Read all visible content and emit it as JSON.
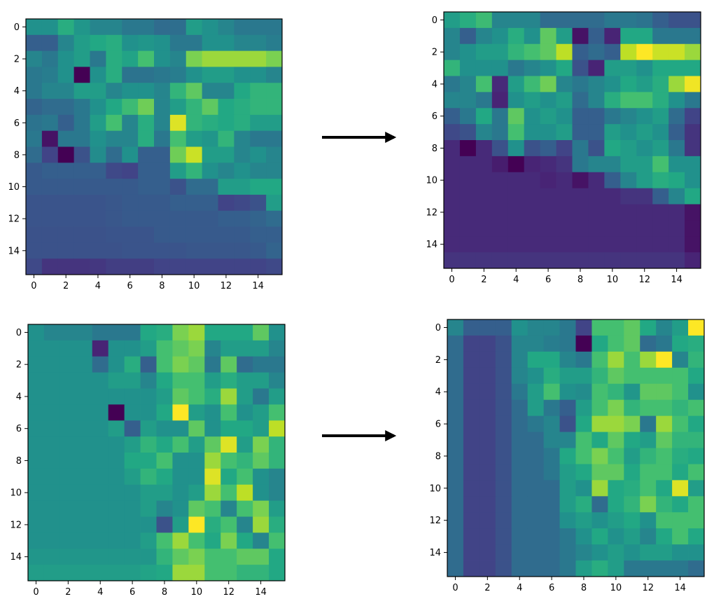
{
  "chart_data": [
    {
      "id": "top-left",
      "type": "heatmap",
      "colormap": "viridis",
      "xlim": [
        -0.5,
        15.5
      ],
      "ylim": [
        15.5,
        -0.5
      ],
      "xticks": [
        0,
        2,
        4,
        6,
        8,
        10,
        12,
        14
      ],
      "yticks": [
        0,
        2,
        4,
        6,
        8,
        10,
        12,
        14
      ],
      "values": [
        [
          0.5,
          0.5,
          0.62,
          0.52,
          0.45,
          0.45,
          0.4,
          0.4,
          0.35,
          0.36,
          0.55,
          0.5,
          0.45,
          0.4,
          0.4,
          0.4
        ],
        [
          0.3,
          0.3,
          0.45,
          0.55,
          0.6,
          0.62,
          0.5,
          0.52,
          0.5,
          0.4,
          0.4,
          0.5,
          0.5,
          0.45,
          0.45,
          0.42
        ],
        [
          0.45,
          0.4,
          0.5,
          0.55,
          0.4,
          0.62,
          0.58,
          0.7,
          0.5,
          0.45,
          0.8,
          0.85,
          0.85,
          0.85,
          0.85,
          0.8
        ],
        [
          0.4,
          0.42,
          0.5,
          0.0,
          0.5,
          0.62,
          0.38,
          0.38,
          0.4,
          0.42,
          0.5,
          0.55,
          0.55,
          0.5,
          0.5,
          0.45
        ],
        [
          0.4,
          0.45,
          0.45,
          0.55,
          0.55,
          0.45,
          0.5,
          0.5,
          0.45,
          0.65,
          0.75,
          0.45,
          0.45,
          0.6,
          0.65,
          0.65
        ],
        [
          0.32,
          0.35,
          0.35,
          0.4,
          0.5,
          0.6,
          0.68,
          0.78,
          0.45,
          0.55,
          0.65,
          0.75,
          0.6,
          0.62,
          0.65,
          0.65
        ],
        [
          0.38,
          0.4,
          0.3,
          0.4,
          0.55,
          0.7,
          0.45,
          0.62,
          0.45,
          0.95,
          0.65,
          0.62,
          0.6,
          0.62,
          0.55,
          0.55
        ],
        [
          0.4,
          0.05,
          0.4,
          0.4,
          0.5,
          0.45,
          0.45,
          0.62,
          0.4,
          0.7,
          0.55,
          0.52,
          0.65,
          0.45,
          0.4,
          0.4
        ],
        [
          0.35,
          0.2,
          0.0,
          0.25,
          0.48,
          0.35,
          0.5,
          0.3,
          0.3,
          0.78,
          0.92,
          0.55,
          0.55,
          0.45,
          0.5,
          0.45
        ],
        [
          0.28,
          0.3,
          0.3,
          0.3,
          0.3,
          0.22,
          0.2,
          0.3,
          0.3,
          0.55,
          0.65,
          0.5,
          0.45,
          0.5,
          0.45,
          0.45
        ],
        [
          0.28,
          0.28,
          0.28,
          0.28,
          0.28,
          0.28,
          0.28,
          0.3,
          0.3,
          0.25,
          0.35,
          0.35,
          0.55,
          0.55,
          0.6,
          0.6
        ],
        [
          0.26,
          0.26,
          0.26,
          0.26,
          0.26,
          0.27,
          0.28,
          0.28,
          0.28,
          0.3,
          0.3,
          0.3,
          0.2,
          0.22,
          0.25,
          0.55
        ],
        [
          0.26,
          0.26,
          0.26,
          0.26,
          0.26,
          0.27,
          0.28,
          0.28,
          0.28,
          0.28,
          0.28,
          0.28,
          0.3,
          0.3,
          0.32,
          0.35
        ],
        [
          0.25,
          0.25,
          0.25,
          0.25,
          0.25,
          0.26,
          0.26,
          0.26,
          0.28,
          0.28,
          0.28,
          0.28,
          0.28,
          0.28,
          0.3,
          0.3
        ],
        [
          0.25,
          0.25,
          0.25,
          0.25,
          0.25,
          0.25,
          0.26,
          0.26,
          0.26,
          0.26,
          0.27,
          0.27,
          0.27,
          0.27,
          0.28,
          0.32
        ],
        [
          0.22,
          0.15,
          0.15,
          0.15,
          0.16,
          0.18,
          0.18,
          0.18,
          0.2,
          0.2,
          0.2,
          0.2,
          0.2,
          0.2,
          0.2,
          0.22
        ]
      ]
    },
    {
      "id": "top-right",
      "type": "heatmap",
      "colormap": "viridis",
      "xlim": [
        -0.5,
        15.5
      ],
      "ylim": [
        15.5,
        -0.5
      ],
      "xticks": [
        0,
        2,
        4,
        6,
        8,
        10,
        12,
        14
      ],
      "yticks": [
        0,
        2,
        4,
        6,
        8,
        10,
        12,
        14
      ],
      "values": [
        [
          0.55,
          0.62,
          0.68,
          0.45,
          0.45,
          0.45,
          0.35,
          0.35,
          0.35,
          0.35,
          0.4,
          0.4,
          0.38,
          0.3,
          0.25,
          0.25
        ],
        [
          0.45,
          0.3,
          0.45,
          0.5,
          0.62,
          0.5,
          0.75,
          0.55,
          0.05,
          0.3,
          0.1,
          0.6,
          0.6,
          0.4,
          0.4,
          0.4
        ],
        [
          0.45,
          0.5,
          0.55,
          0.55,
          0.65,
          0.7,
          0.75,
          0.9,
          0.3,
          0.35,
          0.3,
          0.9,
          1.0,
          0.92,
          0.92,
          0.85
        ],
        [
          0.65,
          0.5,
          0.5,
          0.5,
          0.4,
          0.45,
          0.5,
          0.6,
          0.25,
          0.1,
          0.55,
          0.55,
          0.5,
          0.6,
          0.6,
          0.6
        ],
        [
          0.4,
          0.45,
          0.7,
          0.12,
          0.55,
          0.68,
          0.78,
          0.45,
          0.4,
          0.45,
          0.5,
          0.6,
          0.55,
          0.62,
          0.85,
          0.98
        ],
        [
          0.45,
          0.45,
          0.4,
          0.1,
          0.5,
          0.55,
          0.5,
          0.55,
          0.35,
          0.45,
          0.62,
          0.7,
          0.7,
          0.62,
          0.5,
          0.4
        ],
        [
          0.3,
          0.4,
          0.6,
          0.4,
          0.75,
          0.5,
          0.55,
          0.5,
          0.3,
          0.3,
          0.4,
          0.45,
          0.5,
          0.55,
          0.35,
          0.2
        ],
        [
          0.22,
          0.25,
          0.45,
          0.4,
          0.7,
          0.5,
          0.5,
          0.55,
          0.3,
          0.3,
          0.55,
          0.5,
          0.55,
          0.5,
          0.3,
          0.15
        ],
        [
          0.12,
          0.0,
          0.12,
          0.25,
          0.5,
          0.25,
          0.3,
          0.2,
          0.4,
          0.25,
          0.6,
          0.55,
          0.5,
          0.55,
          0.4,
          0.15
        ],
        [
          0.12,
          0.12,
          0.12,
          0.08,
          0.0,
          0.1,
          0.12,
          0.15,
          0.4,
          0.45,
          0.45,
          0.55,
          0.55,
          0.7,
          0.5,
          0.5
        ],
        [
          0.12,
          0.12,
          0.12,
          0.12,
          0.12,
          0.12,
          0.1,
          0.12,
          0.05,
          0.12,
          0.3,
          0.45,
          0.55,
          0.62,
          0.6,
          0.5
        ],
        [
          0.12,
          0.12,
          0.12,
          0.12,
          0.12,
          0.12,
          0.12,
          0.12,
          0.12,
          0.12,
          0.12,
          0.15,
          0.15,
          0.3,
          0.45,
          0.6
        ],
        [
          0.12,
          0.12,
          0.12,
          0.12,
          0.12,
          0.12,
          0.12,
          0.12,
          0.12,
          0.12,
          0.12,
          0.12,
          0.12,
          0.12,
          0.12,
          0.05
        ],
        [
          0.12,
          0.12,
          0.12,
          0.12,
          0.12,
          0.12,
          0.12,
          0.12,
          0.12,
          0.12,
          0.12,
          0.12,
          0.12,
          0.12,
          0.12,
          0.05
        ],
        [
          0.12,
          0.12,
          0.12,
          0.12,
          0.12,
          0.12,
          0.12,
          0.12,
          0.12,
          0.12,
          0.12,
          0.12,
          0.12,
          0.12,
          0.12,
          0.05
        ],
        [
          0.15,
          0.15,
          0.15,
          0.15,
          0.15,
          0.15,
          0.15,
          0.15,
          0.15,
          0.15,
          0.15,
          0.15,
          0.15,
          0.15,
          0.15,
          0.1
        ]
      ]
    },
    {
      "id": "bottom-left",
      "type": "heatmap",
      "colormap": "viridis",
      "xlim": [
        -0.5,
        15.5
      ],
      "ylim": [
        15.5,
        -0.5
      ],
      "xticks": [
        0,
        2,
        4,
        6,
        8,
        10,
        12,
        14
      ],
      "yticks": [
        0,
        2,
        4,
        6,
        8,
        10,
        12,
        14
      ],
      "values": [
        [
          0.5,
          0.45,
          0.45,
          0.45,
          0.4,
          0.4,
          0.4,
          0.6,
          0.62,
          0.8,
          0.85,
          0.6,
          0.6,
          0.6,
          0.75,
          0.5
        ],
        [
          0.5,
          0.5,
          0.5,
          0.5,
          0.1,
          0.5,
          0.5,
          0.55,
          0.7,
          0.75,
          0.8,
          0.45,
          0.55,
          0.55,
          0.55,
          0.45
        ],
        [
          0.5,
          0.5,
          0.5,
          0.5,
          0.35,
          0.5,
          0.62,
          0.3,
          0.7,
          0.8,
          0.75,
          0.4,
          0.75,
          0.35,
          0.4,
          0.4
        ],
        [
          0.5,
          0.5,
          0.5,
          0.5,
          0.5,
          0.55,
          0.55,
          0.45,
          0.6,
          0.7,
          0.7,
          0.55,
          0.62,
          0.55,
          0.55,
          0.45
        ],
        [
          0.5,
          0.5,
          0.5,
          0.5,
          0.5,
          0.5,
          0.5,
          0.5,
          0.55,
          0.75,
          0.7,
          0.62,
          0.85,
          0.55,
          0.4,
          0.55
        ],
        [
          0.5,
          0.5,
          0.5,
          0.5,
          0.5,
          0.0,
          0.5,
          0.5,
          0.6,
          1.0,
          0.55,
          0.5,
          0.7,
          0.5,
          0.55,
          0.7
        ],
        [
          0.5,
          0.5,
          0.5,
          0.5,
          0.5,
          0.55,
          0.3,
          0.55,
          0.5,
          0.5,
          0.75,
          0.5,
          0.6,
          0.6,
          0.55,
          0.9
        ],
        [
          0.5,
          0.5,
          0.5,
          0.5,
          0.5,
          0.5,
          0.55,
          0.65,
          0.6,
          0.7,
          0.55,
          0.75,
          0.95,
          0.55,
          0.8,
          0.65
        ],
        [
          0.5,
          0.5,
          0.5,
          0.5,
          0.5,
          0.5,
          0.6,
          0.6,
          0.7,
          0.5,
          0.5,
          0.85,
          0.7,
          0.65,
          0.75,
          0.65
        ],
        [
          0.5,
          0.5,
          0.5,
          0.5,
          0.5,
          0.5,
          0.55,
          0.65,
          0.6,
          0.5,
          0.5,
          0.95,
          0.6,
          0.7,
          0.5,
          0.45
        ],
        [
          0.5,
          0.5,
          0.5,
          0.5,
          0.5,
          0.5,
          0.5,
          0.55,
          0.55,
          0.5,
          0.55,
          0.85,
          0.7,
          0.9,
          0.5,
          0.45
        ],
        [
          0.5,
          0.5,
          0.5,
          0.5,
          0.5,
          0.5,
          0.5,
          0.55,
          0.45,
          0.5,
          0.75,
          0.7,
          0.45,
          0.7,
          0.8,
          0.55
        ],
        [
          0.5,
          0.5,
          0.5,
          0.5,
          0.5,
          0.5,
          0.5,
          0.5,
          0.25,
          0.55,
          1.0,
          0.62,
          0.7,
          0.45,
          0.85,
          0.62
        ],
        [
          0.5,
          0.5,
          0.5,
          0.5,
          0.5,
          0.5,
          0.5,
          0.55,
          0.7,
          0.85,
          0.7,
          0.6,
          0.8,
          0.6,
          0.45,
          0.7
        ],
        [
          0.52,
          0.52,
          0.52,
          0.52,
          0.52,
          0.52,
          0.52,
          0.52,
          0.65,
          0.75,
          0.8,
          0.7,
          0.7,
          0.75,
          0.75,
          0.6
        ],
        [
          0.55,
          0.55,
          0.55,
          0.55,
          0.55,
          0.55,
          0.55,
          0.58,
          0.6,
          0.85,
          0.85,
          0.7,
          0.7,
          0.65,
          0.65,
          0.6
        ]
      ]
    },
    {
      "id": "bottom-right",
      "type": "heatmap",
      "colormap": "viridis",
      "xlim": [
        -0.5,
        15.5
      ],
      "ylim": [
        15.5,
        -0.5
      ],
      "xticks": [
        0,
        2,
        4,
        6,
        8,
        10,
        12,
        14
      ],
      "yticks": [
        0,
        2,
        4,
        6,
        8,
        10,
        12,
        14
      ],
      "values": [
        [
          0.45,
          0.3,
          0.3,
          0.3,
          0.5,
          0.45,
          0.45,
          0.4,
          0.2,
          0.7,
          0.7,
          0.75,
          0.6,
          0.45,
          0.55,
          1.0
        ],
        [
          0.35,
          0.2,
          0.2,
          0.25,
          0.45,
          0.45,
          0.42,
          0.4,
          0.0,
          0.6,
          0.7,
          0.75,
          0.35,
          0.4,
          0.6,
          0.62
        ],
        [
          0.35,
          0.2,
          0.2,
          0.25,
          0.45,
          0.6,
          0.6,
          0.45,
          0.4,
          0.7,
          0.85,
          0.7,
          0.85,
          1.0,
          0.45,
          0.65
        ],
        [
          0.35,
          0.2,
          0.2,
          0.25,
          0.45,
          0.5,
          0.62,
          0.55,
          0.55,
          0.65,
          0.75,
          0.7,
          0.7,
          0.7,
          0.7,
          0.6
        ],
        [
          0.35,
          0.2,
          0.2,
          0.25,
          0.4,
          0.55,
          0.7,
          0.5,
          0.48,
          0.7,
          0.65,
          0.52,
          0.75,
          0.75,
          0.7,
          0.5
        ],
        [
          0.35,
          0.2,
          0.2,
          0.25,
          0.35,
          0.55,
          0.4,
          0.3,
          0.55,
          0.7,
          0.8,
          0.65,
          0.7,
          0.7,
          0.65,
          0.7
        ],
        [
          0.35,
          0.2,
          0.2,
          0.25,
          0.35,
          0.4,
          0.45,
          0.25,
          0.6,
          0.85,
          0.85,
          0.8,
          0.4,
          0.85,
          0.7,
          0.6
        ],
        [
          0.35,
          0.2,
          0.2,
          0.25,
          0.35,
          0.35,
          0.45,
          0.45,
          0.7,
          0.6,
          0.75,
          0.6,
          0.55,
          0.75,
          0.65,
          0.65
        ],
        [
          0.35,
          0.2,
          0.2,
          0.25,
          0.35,
          0.35,
          0.4,
          0.6,
          0.7,
          0.8,
          0.7,
          0.55,
          0.65,
          0.7,
          0.62,
          0.6
        ],
        [
          0.35,
          0.2,
          0.2,
          0.25,
          0.35,
          0.35,
          0.4,
          0.55,
          0.6,
          0.75,
          0.75,
          0.6,
          0.7,
          0.7,
          0.6,
          0.7
        ],
        [
          0.35,
          0.2,
          0.2,
          0.25,
          0.35,
          0.35,
          0.35,
          0.55,
          0.5,
          0.85,
          0.6,
          0.62,
          0.7,
          0.6,
          0.95,
          0.55
        ],
        [
          0.35,
          0.2,
          0.2,
          0.25,
          0.35,
          0.35,
          0.35,
          0.55,
          0.62,
          0.35,
          0.6,
          0.65,
          0.8,
          0.65,
          0.6,
          0.7
        ],
        [
          0.35,
          0.2,
          0.2,
          0.25,
          0.35,
          0.35,
          0.35,
          0.5,
          0.55,
          0.5,
          0.55,
          0.6,
          0.5,
          0.7,
          0.7,
          0.7
        ],
        [
          0.35,
          0.2,
          0.2,
          0.25,
          0.35,
          0.35,
          0.35,
          0.4,
          0.5,
          0.6,
          0.5,
          0.55,
          0.45,
          0.6,
          0.7,
          0.6
        ],
        [
          0.35,
          0.2,
          0.2,
          0.25,
          0.35,
          0.35,
          0.35,
          0.4,
          0.45,
          0.5,
          0.55,
          0.5,
          0.55,
          0.55,
          0.5,
          0.5
        ],
        [
          0.35,
          0.2,
          0.2,
          0.25,
          0.35,
          0.35,
          0.35,
          0.4,
          0.55,
          0.62,
          0.55,
          0.4,
          0.4,
          0.4,
          0.4,
          0.35
        ]
      ]
    }
  ],
  "arrows": [
    {
      "from": "top-left",
      "to": "top-right"
    },
    {
      "from": "bottom-left",
      "to": "bottom-right"
    }
  ]
}
